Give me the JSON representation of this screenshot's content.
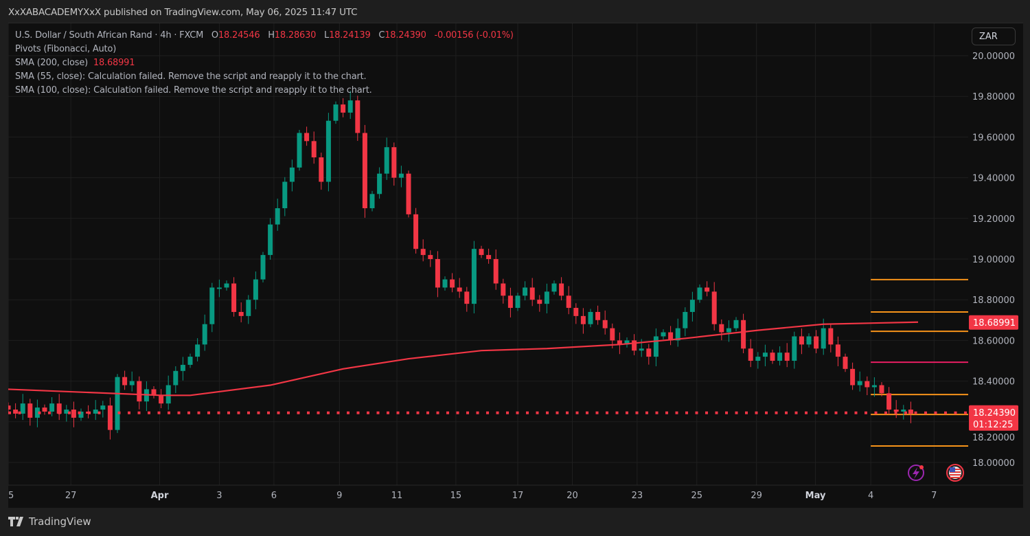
{
  "header": {
    "publisher_line": "XxXABACADEMYXxX published on TradingView.com, May 06, 2025 11:47 UTC"
  },
  "legend": {
    "symbol": "U.S. Dollar / South African Rand · 4h · FXCM",
    "open_label": "O",
    "open": "18.24546",
    "high_label": "H",
    "high": "18.28630",
    "low_label": "L",
    "low": "18.24139",
    "close_label": "C",
    "close": "18.24390",
    "change": "-0.00156 (-0.01%)",
    "pivots": "Pivots (Fibonacci, Auto)",
    "sma200_label": "SMA (200, close)",
    "sma200_value": "18.68991",
    "sma55": "SMA (55, close): Calculation failed. Remove the script and reapply it to the chart.",
    "sma100": "SMA (100, close): Calculation failed. Remove the script and reapply it to the chart."
  },
  "currency_button": "ZAR",
  "footer": {
    "brand": "TradingView"
  },
  "colors": {
    "up": "#089981",
    "down": "#f23645",
    "sma": "#f23645",
    "pivot": "#f7931a",
    "pivot_mid": "#e91e63",
    "grid": "#1f1f1f",
    "background": "#0f0f0f"
  },
  "icons": [
    "lightning-icon",
    "us-flag-icon",
    "tradingview-logo-icon"
  ],
  "chart_data": {
    "type": "candlestick",
    "title": "U.S. Dollar / South African Rand · 4h · FXCM",
    "ylim": [
      17.9,
      20.12
    ],
    "y_ticks": [
      "18.00000",
      "18.20000",
      "18.40000",
      "18.60000",
      "18.80000",
      "19.00000",
      "19.20000",
      "19.40000",
      "19.60000",
      "19.80000",
      "20.00000"
    ],
    "x_ticks": [
      {
        "label": "25",
        "bar": 0
      },
      {
        "label": "27",
        "bar": 8.6
      },
      {
        "label": "Apr",
        "bar": 20.8,
        "bold": true
      },
      {
        "label": "3",
        "bar": 29
      },
      {
        "label": "6",
        "bar": 36.5
      },
      {
        "label": "9",
        "bar": 45.5
      },
      {
        "label": "11",
        "bar": 53.4
      },
      {
        "label": "15",
        "bar": 61.5
      },
      {
        "label": "17",
        "bar": 70
      },
      {
        "label": "20",
        "bar": 77.5
      },
      {
        "label": "23",
        "bar": 86.4
      },
      {
        "label": "25",
        "bar": 94.6
      },
      {
        "label": "29",
        "bar": 102.8
      },
      {
        "label": "May",
        "bar": 110.9,
        "bold": true
      },
      {
        "label": "4",
        "bar": 118.5
      },
      {
        "label": "7",
        "bar": 127.2
      }
    ],
    "closes": [
      18.26,
      18.24,
      18.29,
      18.22,
      18.27,
      18.25,
      18.29,
      18.24,
      18.26,
      18.22,
      18.25,
      18.24,
      18.26,
      18.28,
      18.16,
      18.42,
      18.38,
      18.4,
      18.3,
      18.36,
      18.33,
      18.29,
      18.38,
      18.45,
      18.48,
      18.52,
      18.58,
      18.68,
      18.86,
      18.86,
      18.88,
      18.74,
      18.72,
      18.8,
      18.9,
      19.02,
      19.17,
      19.25,
      19.38,
      19.45,
      19.62,
      19.58,
      19.5,
      19.38,
      19.68,
      19.76,
      19.72,
      19.78,
      19.62,
      19.25,
      19.32,
      19.42,
      19.55,
      19.4,
      19.42,
      19.22,
      19.05,
      19.02,
      19.0,
      18.86,
      18.9,
      18.86,
      18.84,
      18.78,
      19.05,
      19.02,
      19.0,
      18.88,
      18.82,
      18.76,
      18.82,
      18.86,
      18.8,
      18.78,
      18.84,
      18.88,
      18.82,
      18.76,
      18.72,
      18.68,
      18.74,
      18.7,
      18.66,
      18.6,
      18.58,
      18.6,
      18.55,
      18.56,
      18.52,
      18.62,
      18.64,
      18.6,
      18.66,
      18.74,
      18.8,
      18.86,
      18.84,
      18.68,
      18.64,
      18.66,
      18.7,
      18.56,
      18.5,
      18.52,
      18.54,
      18.5,
      18.54,
      18.5,
      18.62,
      18.58,
      18.62,
      18.56,
      18.66,
      18.58,
      18.52,
      18.46,
      18.38,
      18.4,
      18.37,
      18.38,
      18.34,
      18.26,
      18.25,
      18.26,
      18.24
    ],
    "sma200": {
      "name": "SMA (200, close)",
      "points": [
        [
          0,
          18.36
        ],
        [
          21,
          18.33
        ],
        [
          25,
          18.33
        ],
        [
          36,
          18.38
        ],
        [
          46,
          18.46
        ],
        [
          55,
          18.51
        ],
        [
          65,
          18.55
        ],
        [
          74,
          18.56
        ],
        [
          84,
          18.58
        ],
        [
          93,
          18.61
        ],
        [
          103,
          18.65
        ],
        [
          112,
          18.68
        ],
        [
          125,
          18.69
        ]
      ]
    },
    "pivots": {
      "start_bar": 118.5,
      "levels": [
        18.899,
        18.74,
        18.645,
        18.493,
        18.334,
        18.236,
        18.081
      ],
      "mid_index": 3
    },
    "last_price": {
      "value": "18.24390",
      "countdown": "01:12:25"
    },
    "sma_last": "18.68991"
  }
}
